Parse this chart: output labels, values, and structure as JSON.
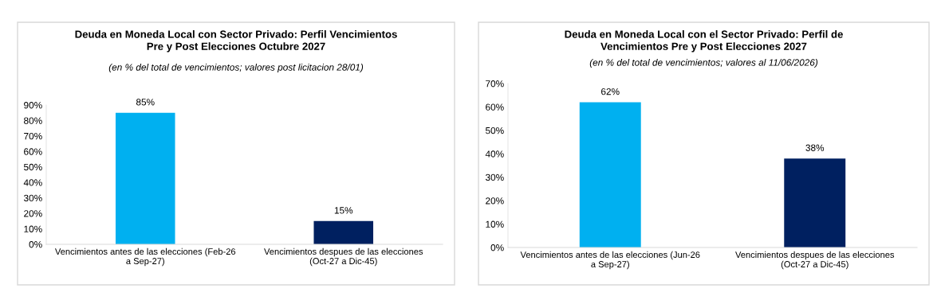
{
  "chart_data": [
    {
      "type": "bar",
      "title": "Deuda en Moneda Local con Sector Privado: Perfil Vencimientos\nPre y Post Elecciones Octubre 2027",
      "subtitle": "(en % del total de vencimientos; valores post licitacion 28/01)",
      "categories": [
        "Vencimientos antes de las elecciones (Feb-26 a Sep-27)",
        "Vencimientos despues de las elecciones (Oct-27 a Dic-45)"
      ],
      "values": [
        85,
        15
      ],
      "colors": [
        "#00b0f0",
        "#002060"
      ],
      "value_labels": [
        "85%",
        "15%"
      ],
      "ylim": [
        0,
        90
      ],
      "yticks": [
        {
          "value": 0,
          "label": "0%"
        },
        {
          "value": 10,
          "label": "10%"
        },
        {
          "value": 20,
          "label": "20%"
        },
        {
          "value": 30,
          "label": "30%"
        },
        {
          "value": 40,
          "label": "40%"
        },
        {
          "value": 50,
          "label": "50%"
        },
        {
          "value": 60,
          "label": "60%"
        },
        {
          "value": 70,
          "label": "70%"
        },
        {
          "value": 80,
          "label": "80%"
        },
        {
          "value": 90,
          "label": "90%"
        }
      ],
      "grid": false,
      "legend": false
    },
    {
      "type": "bar",
      "title": "Deuda en Moneda Local con el Sector Privado: Perfil de\nVencimientos Pre y Post Elecciones 2027",
      "subtitle": "(en % del total de vencimientos; valores al 11/06/2026)",
      "categories": [
        "Vencimientos antes de las elecciones (Jun-26 a Sep-27)",
        "Vencimientos despues de las elecciones (Oct-27 a Dic-45)"
      ],
      "values": [
        62,
        38
      ],
      "colors": [
        "#00b0f0",
        "#002060"
      ],
      "value_labels": [
        "62%",
        "38%"
      ],
      "ylim": [
        0,
        70
      ],
      "yticks": [
        {
          "value": 0,
          "label": "0%"
        },
        {
          "value": 10,
          "label": "10%"
        },
        {
          "value": 20,
          "label": "20%"
        },
        {
          "value": 30,
          "label": "30%"
        },
        {
          "value": 40,
          "label": "40%"
        },
        {
          "value": 50,
          "label": "50%"
        },
        {
          "value": 60,
          "label": "60%"
        },
        {
          "value": 70,
          "label": "70%"
        }
      ],
      "grid": false,
      "legend": false
    }
  ]
}
